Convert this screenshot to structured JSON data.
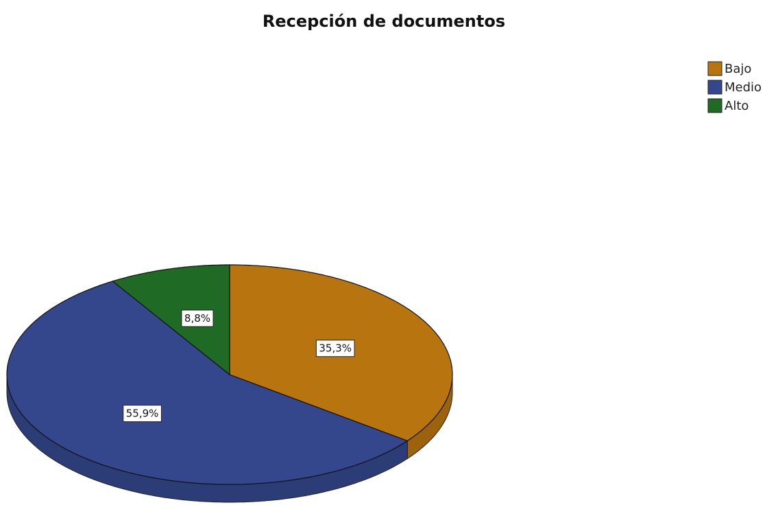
{
  "chart_data": {
    "type": "pie",
    "title": "Recepción de documentos",
    "categories": [
      "Bajo",
      "Medio",
      "Alto"
    ],
    "values": [
      35.3,
      55.9,
      8.8
    ],
    "value_labels": [
      "35,3%",
      "55,9%",
      "8,8%"
    ],
    "colors": [
      "#b8740e",
      "#34478c",
      "#1f6b26"
    ],
    "legend": "top-right"
  }
}
